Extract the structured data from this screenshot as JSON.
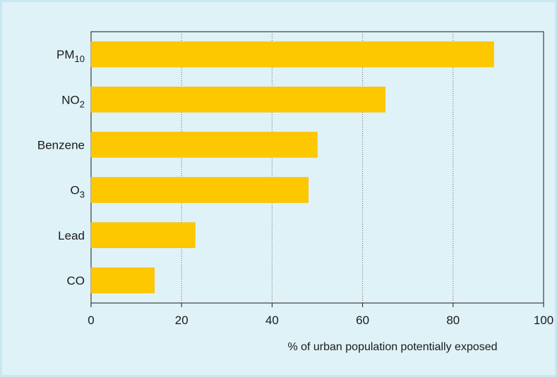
{
  "colors": {
    "background": "#dff2f8",
    "border": "#c9e7f1",
    "bar": "#fdc800",
    "bar_stroke": "#f0b800",
    "grid": "#6a6a6a",
    "axis": "#1a1a1a"
  },
  "chart_data": {
    "type": "bar",
    "orientation": "horizontal",
    "categories": [
      {
        "base": "PM",
        "sub": "10"
      },
      {
        "base": "NO",
        "sub": "2"
      },
      {
        "base": "Benzene",
        "sub": ""
      },
      {
        "base": "O",
        "sub": "3"
      },
      {
        "base": "Lead",
        "sub": ""
      },
      {
        "base": "CO",
        "sub": ""
      }
    ],
    "values": [
      89,
      65,
      50,
      48,
      23,
      14
    ],
    "xlabel": "% of urban population potentially exposed",
    "ylabel": "",
    "title": "",
    "xlim": [
      0,
      100
    ],
    "xticks": [
      0,
      20,
      40,
      60,
      80,
      100
    ],
    "xtick_labels": [
      "0",
      "20",
      "40",
      "60",
      "80",
      "100"
    ],
    "grid": "vertical dotted",
    "legend": "none"
  }
}
